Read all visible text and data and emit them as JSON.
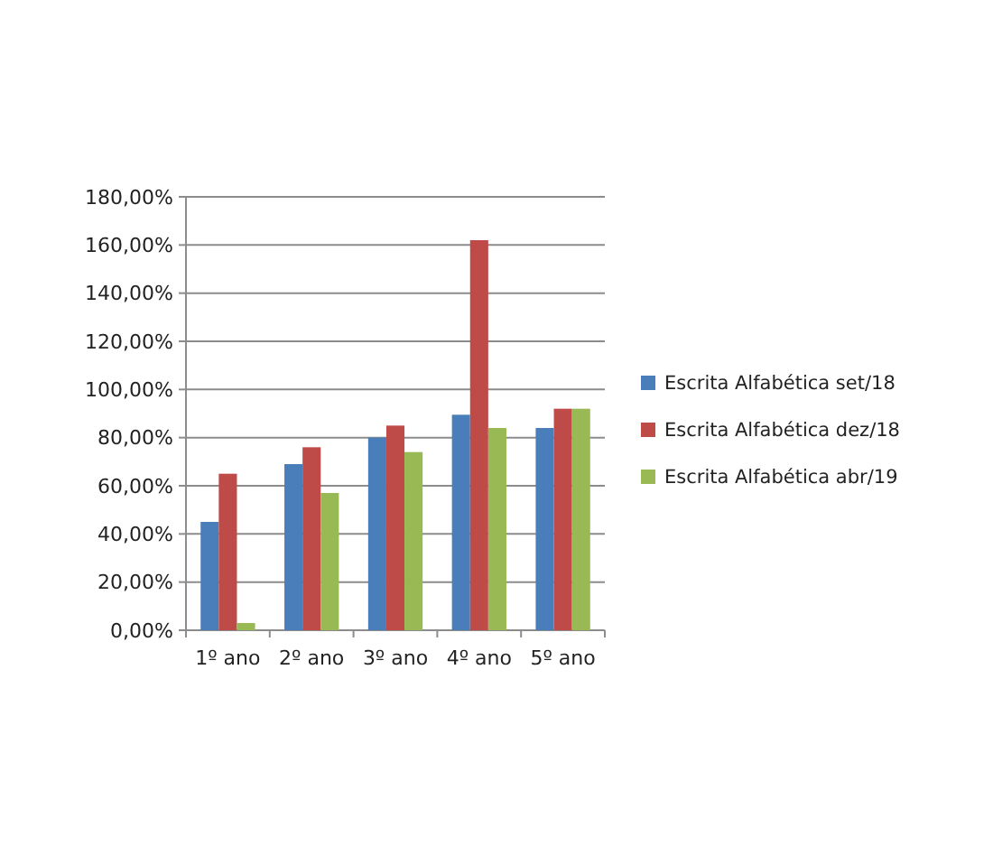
{
  "chart_data": {
    "type": "bar",
    "categories": [
      "1º ano",
      "2º ano",
      "3º ano",
      "4º ano",
      "5º ano"
    ],
    "series": [
      {
        "name": "Escrita Alfabética set/18",
        "color": "#4a7ebb",
        "values": [
          45,
          69,
          80,
          89.5,
          84
        ]
      },
      {
        "name": "Escrita Alfabética dez/18",
        "color": "#be4b48",
        "values": [
          65,
          76,
          85,
          162,
          92
        ]
      },
      {
        "name": "Escrita Alfabética abr/19",
        "color": "#98b954",
        "values": [
          3,
          57,
          74,
          84,
          92
        ]
      }
    ],
    "ylim": [
      0,
      180
    ],
    "yticks": [
      {
        "value": 0,
        "label": "0,00%"
      },
      {
        "value": 20,
        "label": "20,00%"
      },
      {
        "value": 40,
        "label": "40,00%"
      },
      {
        "value": 60,
        "label": "60,00%"
      },
      {
        "value": 80,
        "label": "80,00%"
      },
      {
        "value": 100,
        "label": "100,00%"
      },
      {
        "value": 120,
        "label": "120,00%"
      },
      {
        "value": 140,
        "label": "140,00%"
      },
      {
        "value": 160,
        "label": "160,00%"
      },
      {
        "value": 180,
        "label": "180,00%"
      }
    ],
    "grid": "y",
    "legend": "right"
  }
}
